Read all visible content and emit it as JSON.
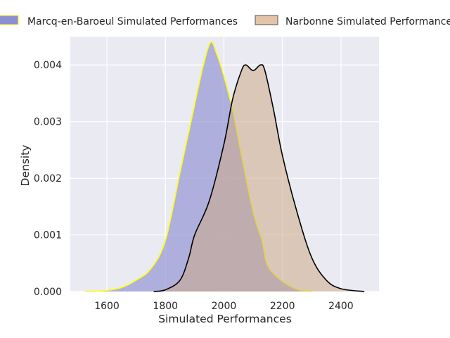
{
  "chart_data": {
    "type": "area",
    "subtype": "kde-density",
    "xlabel": "Simulated Performances",
    "ylabel": "Density",
    "xlim": [
      1475,
      2530
    ],
    "ylim": [
      0,
      0.0045
    ],
    "xticks": [
      1600,
      1800,
      2000,
      2200,
      2400
    ],
    "xtick_labels": [
      "1600",
      "1800",
      "2000",
      "2200",
      "2400"
    ],
    "yticks": [
      0,
      0.001,
      0.002,
      0.003,
      0.004
    ],
    "ytick_labels": [
      "0.000",
      "0.001",
      "0.002",
      "0.003",
      "0.004"
    ],
    "grid": true,
    "background": "#eaeaf2",
    "legend_position": "top",
    "series": [
      {
        "name": "Marcq-en-Baroeul Simulated Performances",
        "fill": "#8d8fd1",
        "fill_opacity": 0.65,
        "line": "#ffff00",
        "points": [
          [
            1525,
            0.0
          ],
          [
            1600,
            2e-05
          ],
          [
            1650,
            7e-05
          ],
          [
            1700,
            0.0002
          ],
          [
            1750,
            0.0004
          ],
          [
            1800,
            0.0009
          ],
          [
            1850,
            0.0021
          ],
          [
            1900,
            0.0033
          ],
          [
            1930,
            0.004
          ],
          [
            1955,
            0.0044
          ],
          [
            1975,
            0.0042
          ],
          [
            2000,
            0.0038
          ],
          [
            2030,
            0.0032
          ],
          [
            2060,
            0.0024
          ],
          [
            2100,
            0.0014
          ],
          [
            2130,
            0.0009
          ],
          [
            2150,
            0.00045
          ],
          [
            2200,
            0.00018
          ],
          [
            2250,
            4e-05
          ],
          [
            2300,
            0.0
          ]
        ]
      },
      {
        "name": "Narbonne Simulated Performances",
        "fill": "#cda988",
        "fill_opacity": 0.55,
        "line": "#000000",
        "points": [
          [
            1760,
            0.0
          ],
          [
            1800,
            3e-05
          ],
          [
            1850,
            0.0002
          ],
          [
            1880,
            0.0006
          ],
          [
            1900,
            0.001
          ],
          [
            1950,
            0.0016
          ],
          [
            2000,
            0.0026
          ],
          [
            2030,
            0.0034
          ],
          [
            2060,
            0.0039
          ],
          [
            2075,
            0.004
          ],
          [
            2100,
            0.0039
          ],
          [
            2125,
            0.004
          ],
          [
            2140,
            0.0039
          ],
          [
            2170,
            0.0032
          ],
          [
            2200,
            0.0024
          ],
          [
            2250,
            0.0014
          ],
          [
            2300,
            0.0006
          ],
          [
            2350,
            0.0002
          ],
          [
            2400,
            5e-05
          ],
          [
            2480,
            0.0
          ]
        ]
      }
    ]
  }
}
